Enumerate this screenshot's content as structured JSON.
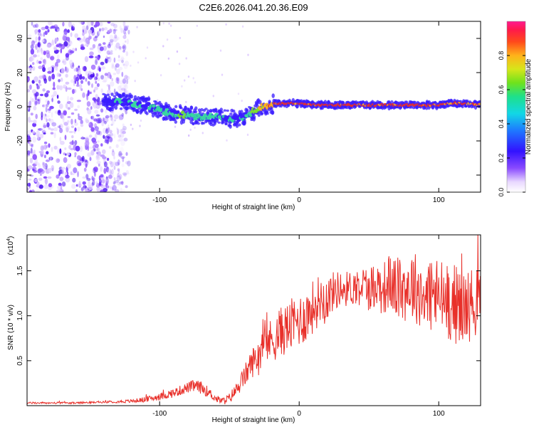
{
  "figure_title": "C2E6.2026.041.20.36.E09",
  "colors": {
    "line": "#e8302a",
    "axis": "#000000",
    "background": "#ffffff",
    "noise": "#7a3cff",
    "track_hot": "#e8302a",
    "track_mid": "#39d9a0",
    "track_edge": "#3a1cff"
  },
  "chart_data": [
    {
      "type": "heatmap",
      "title": "",
      "xlabel": "Height of straight line (km)",
      "ylabel": "Frequency (Hz)",
      "xlim": [
        -195,
        130
      ],
      "ylim": [
        -50,
        50
      ],
      "xticks": [
        -100,
        0,
        100
      ],
      "yticks": [
        -40,
        -20,
        0,
        20,
        40
      ],
      "xtick_labels": [
        "-100",
        "0",
        "100"
      ],
      "ytick_labels": [
        "-40",
        "-20",
        "0",
        "20",
        "40"
      ],
      "colorbar": {
        "label": "Normalized spectral amplitude",
        "range": [
          0,
          1
        ],
        "ticks": [
          0.0,
          0.2,
          0.4,
          0.6,
          0.8
        ],
        "tick_labels": [
          "0.0",
          "0.2",
          "0.4",
          "0.6",
          "0.8"
        ]
      },
      "noise_region": {
        "x_range": [
          -195,
          -122
        ],
        "freq_range": [
          -50,
          50
        ]
      },
      "track": {
        "description": "dominant frequency vs height",
        "x": [
          -140,
          -130,
          -120,
          -110,
          -100,
          -90,
          -80,
          -70,
          -60,
          -50,
          -45,
          -40,
          -35,
          -30,
          -25,
          -20,
          -18,
          -10,
          0,
          10,
          20,
          40,
          60,
          80,
          100,
          110,
          120,
          130
        ],
        "freq": [
          3,
          3,
          2,
          1,
          -2,
          -4,
          -5,
          -6,
          -6,
          -7,
          -7,
          -6,
          -4,
          -1,
          0,
          0,
          2,
          2,
          2,
          1,
          1,
          1,
          1,
          1,
          1,
          2,
          2,
          1
        ],
        "amplitude": [
          0.3,
          0.4,
          0.45,
          0.5,
          0.5,
          0.5,
          0.55,
          0.55,
          0.5,
          0.5,
          0.45,
          0.4,
          0.55,
          0.7,
          0.8,
          0.85,
          0.9,
          0.92,
          0.95,
          0.95,
          0.95,
          0.95,
          0.95,
          0.95,
          0.92,
          0.9,
          0.88,
          0.85
        ]
      }
    },
    {
      "type": "line",
      "title": "",
      "xlabel": "Height of straight line (km)",
      "ylabel": "SNR (10 * v/v)",
      "y_multiplier_label": "(x10",
      "y_multiplier_exponent": "4",
      "y_multiplier_close": ")",
      "xlim": [
        -195,
        130
      ],
      "ylim": [
        0,
        1.9
      ],
      "xticks": [
        -100,
        0,
        100
      ],
      "yticks": [
        0.5,
        1.0,
        1.5
      ],
      "xtick_labels": [
        "-100",
        "0",
        "100"
      ],
      "ytick_labels": [
        "0.5",
        "1.0",
        "1.5"
      ],
      "series": [
        {
          "name": "SNR",
          "x": [
            -195,
            -180,
            -160,
            -140,
            -120,
            -110,
            -100,
            -90,
            -80,
            -75,
            -70,
            -65,
            -60,
            -55,
            -50,
            -45,
            -40,
            -35,
            -30,
            -25,
            -20,
            -15,
            -10,
            -5,
            0,
            5,
            10,
            15,
            20,
            25,
            30,
            35,
            40,
            45,
            50,
            55,
            60,
            65,
            70,
            75,
            80,
            85,
            90,
            95,
            100,
            105,
            110,
            115,
            120,
            125,
            130
          ],
          "y": [
            0.03,
            0.03,
            0.03,
            0.04,
            0.05,
            0.07,
            0.1,
            0.14,
            0.2,
            0.22,
            0.2,
            0.15,
            0.08,
            0.05,
            0.08,
            0.18,
            0.3,
            0.45,
            0.55,
            0.7,
            0.72,
            0.8,
            0.85,
            0.9,
            0.95,
            1.0,
            1.1,
            1.2,
            1.2,
            1.28,
            1.3,
            1.3,
            1.32,
            1.35,
            1.3,
            1.35,
            1.3,
            1.38,
            1.3,
            1.3,
            1.35,
            1.3,
            1.2,
            1.25,
            1.2,
            1.2,
            1.15,
            1.1,
            1.1,
            1.15,
            1.15
          ],
          "noise_amplitude": [
            0.01,
            0.01,
            0.01,
            0.01,
            0.02,
            0.03,
            0.04,
            0.05,
            0.06,
            0.07,
            0.07,
            0.06,
            0.04,
            0.04,
            0.06,
            0.08,
            0.12,
            0.15,
            0.2,
            0.22,
            0.25,
            0.28,
            0.28,
            0.3,
            0.3,
            0.3,
            0.3,
            0.28,
            0.25,
            0.22,
            0.2,
            0.2,
            0.2,
            0.22,
            0.25,
            0.28,
            0.3,
            0.32,
            0.35,
            0.38,
            0.4,
            0.4,
            0.42,
            0.45,
            0.45,
            0.45,
            0.45,
            0.45,
            0.42,
            0.4,
            0.38
          ]
        }
      ]
    }
  ]
}
